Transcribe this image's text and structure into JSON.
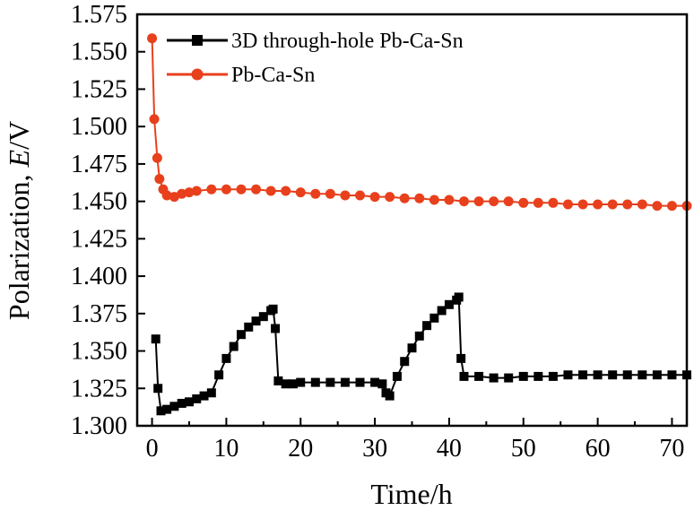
{
  "chart_data": {
    "type": "line",
    "title": "",
    "xlabel": "Time/h",
    "ylabel_prefix": "Polarization, ",
    "ylabel_italic": "E",
    "ylabel_suffix": "/V",
    "xlim": [
      -2,
      72
    ],
    "ylim": [
      1.3,
      1.575
    ],
    "xticks": [
      0,
      10,
      20,
      30,
      40,
      50,
      60,
      70
    ],
    "yticks": [
      1.3,
      1.325,
      1.35,
      1.375,
      1.4,
      1.425,
      1.45,
      1.475,
      1.5,
      1.525,
      1.55,
      1.575
    ],
    "xtick_labels": [
      "0",
      "10",
      "20",
      "30",
      "40",
      "50",
      "60",
      "70"
    ],
    "ytick_labels": [
      "1.300",
      "1.325",
      "1.350",
      "1.375",
      "1.400",
      "1.425",
      "1.450",
      "1.475",
      "1.500",
      "1.525",
      "1.550",
      "1.575"
    ],
    "grid": false,
    "legend_position": "top-left",
    "series": [
      {
        "name": "3D through-hole Pb-Ca-Sn",
        "color": "#000000",
        "marker": "square",
        "x": [
          0.5,
          0.8,
          1.2,
          2,
          3,
          4,
          5,
          6,
          7,
          8,
          9,
          10,
          11,
          12,
          13,
          14,
          15,
          16,
          16.3,
          16.6,
          17,
          18,
          19,
          20,
          22,
          24,
          26,
          28,
          30,
          31,
          31.5,
          32,
          33,
          34,
          35,
          36,
          37,
          38,
          39,
          40,
          41,
          41.3,
          41.6,
          42,
          44,
          46,
          48,
          50,
          52,
          54,
          56,
          58,
          60,
          62,
          64,
          66,
          68,
          70,
          72
        ],
        "y": [
          1.358,
          1.325,
          1.31,
          1.311,
          1.313,
          1.315,
          1.316,
          1.318,
          1.32,
          1.322,
          1.334,
          1.345,
          1.353,
          1.361,
          1.366,
          1.37,
          1.373,
          1.377,
          1.378,
          1.365,
          1.33,
          1.328,
          1.328,
          1.329,
          1.329,
          1.329,
          1.329,
          1.329,
          1.329,
          1.328,
          1.322,
          1.32,
          1.333,
          1.343,
          1.352,
          1.36,
          1.367,
          1.372,
          1.377,
          1.381,
          1.384,
          1.386,
          1.345,
          1.333,
          1.333,
          1.332,
          1.332,
          1.333,
          1.333,
          1.333,
          1.334,
          1.334,
          1.334,
          1.334,
          1.334,
          1.334,
          1.334,
          1.334,
          1.334
        ]
      },
      {
        "name": "Pb-Ca-Sn",
        "color": "#e8401c",
        "marker": "circle",
        "x": [
          0,
          0.3,
          0.7,
          1,
          1.5,
          2,
          3,
          4,
          5,
          6,
          8,
          10,
          12,
          14,
          16,
          18,
          20,
          22,
          24,
          26,
          28,
          30,
          32,
          34,
          36,
          38,
          40,
          42,
          44,
          46,
          48,
          50,
          52,
          54,
          56,
          58,
          60,
          62,
          64,
          66,
          68,
          70,
          72
        ],
        "y": [
          1.559,
          1.505,
          1.479,
          1.465,
          1.458,
          1.454,
          1.453,
          1.455,
          1.456,
          1.457,
          1.458,
          1.458,
          1.458,
          1.458,
          1.457,
          1.457,
          1.456,
          1.455,
          1.455,
          1.454,
          1.454,
          1.453,
          1.453,
          1.452,
          1.452,
          1.451,
          1.451,
          1.45,
          1.45,
          1.45,
          1.45,
          1.449,
          1.449,
          1.449,
          1.448,
          1.448,
          1.448,
          1.448,
          1.448,
          1.448,
          1.447,
          1.447,
          1.447
        ]
      }
    ]
  }
}
